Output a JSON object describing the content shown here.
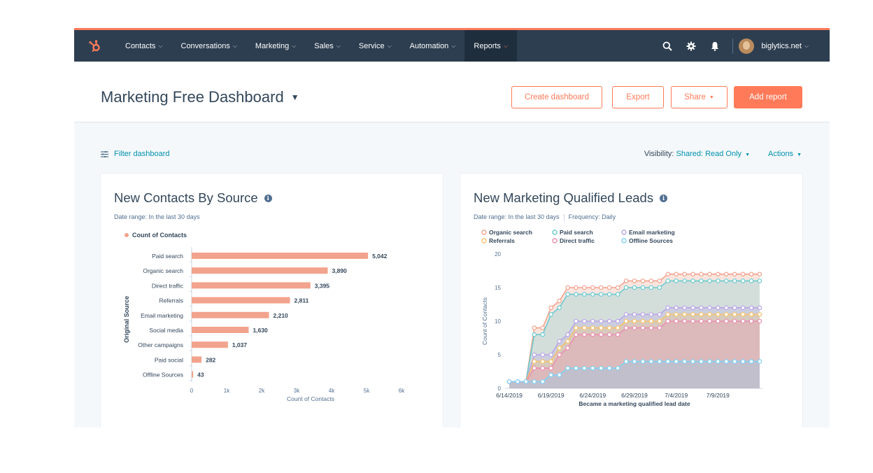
{
  "nav": {
    "logo": "hubspot-sprocket",
    "items": [
      {
        "label": "Contacts"
      },
      {
        "label": "Conversations"
      },
      {
        "label": "Marketing"
      },
      {
        "label": "Sales"
      },
      {
        "label": "Service"
      },
      {
        "label": "Automation"
      },
      {
        "label": "Reports"
      }
    ],
    "account": "biglytics.net"
  },
  "header": {
    "title": "Marketing Free Dashboard",
    "buttons": {
      "create": "Create dashboard",
      "export": "Export",
      "share": "Share",
      "add": "Add report"
    }
  },
  "toolbar": {
    "filter": "Filter dashboard",
    "visibility_label": "Visibility:",
    "visibility_value": "Shared: Read Only",
    "actions": "Actions"
  },
  "colors": {
    "accent": "#ff7a59",
    "nav_bg": "#2d3e50",
    "link": "#0091ae",
    "bar": "#f2a38d"
  },
  "card1": {
    "title": "New Contacts By Source",
    "date_range": "Date range: In the last 30 days",
    "chart_data": {
      "type": "bar",
      "orientation": "horizontal",
      "legend": [
        "Count of Contacts"
      ],
      "ylabel": "Original Source",
      "xlabel": "Count of Contacts",
      "categories": [
        "Paid search",
        "Organic search",
        "Direct traffic",
        "Referrals",
        "Email marketing",
        "Social media",
        "Other campaigns",
        "Paid social",
        "Offline Sources"
      ],
      "values": [
        5042,
        3890,
        3395,
        2811,
        2210,
        1630,
        1037,
        282,
        43
      ],
      "value_labels": [
        "5,042",
        "3,890",
        "3,395",
        "2,811",
        "2,210",
        "1,630",
        "1,037",
        "282",
        "43"
      ],
      "xlim": [
        0,
        6000
      ],
      "xticks": [
        "0",
        "1k",
        "2k",
        "3k",
        "4k",
        "5k",
        "6k"
      ]
    }
  },
  "card2": {
    "title": "New Marketing Qualified Leads",
    "date_range": "Date range: In the last 30 days",
    "frequency": "Frequency: Daily",
    "chart_data": {
      "type": "area",
      "xlabel": "Became a marketing qualified lead date",
      "ylabel": "Count of Contacts",
      "ylim": [
        0,
        20
      ],
      "yticks": [
        "0",
        "5",
        "10",
        "15",
        "20"
      ],
      "xticks": [
        "6/14/2019",
        "6/19/2019",
        "6/24/2019",
        "6/29/2019",
        "7/4/2019",
        "7/9/2019"
      ],
      "x": [
        "6/14/2019",
        "6/15/2019",
        "6/16/2019",
        "6/17/2019",
        "6/18/2019",
        "6/19/2019",
        "6/20/2019",
        "6/21/2019",
        "6/22/2019",
        "6/23/2019",
        "6/24/2019",
        "6/25/2019",
        "6/26/2019",
        "6/27/2019",
        "6/28/2019",
        "6/29/2019",
        "6/30/2019",
        "7/1/2019",
        "7/2/2019",
        "7/3/2019",
        "7/4/2019",
        "7/5/2019",
        "7/6/2019",
        "7/7/2019",
        "7/8/2019",
        "7/9/2019",
        "7/10/2019",
        "7/11/2019",
        "7/12/2019",
        "7/13/2019",
        "7/14/2019"
      ],
      "series": [
        {
          "name": "Organic search",
          "color": "#f2a38d",
          "values": [
            1,
            1,
            1,
            9,
            9,
            12,
            13,
            15,
            15,
            15,
            15,
            15,
            15,
            15,
            16,
            16,
            16,
            16,
            16,
            17,
            17,
            17,
            17,
            17,
            17,
            17,
            17,
            17,
            17,
            17,
            17
          ]
        },
        {
          "name": "Paid search",
          "color": "#6bcbcf",
          "values": [
            1,
            1,
            1,
            8,
            8,
            11,
            12,
            14,
            14,
            14,
            14,
            14,
            14,
            14,
            15,
            15,
            15,
            15,
            15,
            16,
            16,
            16,
            16,
            16,
            16,
            16,
            16,
            16,
            16,
            16,
            16
          ]
        },
        {
          "name": "Email marketing",
          "color": "#b9a5e6",
          "values": [
            1,
            1,
            1,
            5,
            5,
            5,
            7,
            8,
            10,
            10,
            10,
            10,
            10,
            10,
            11,
            11,
            11,
            11,
            11,
            12,
            12,
            12,
            12,
            12,
            12,
            12,
            12,
            12,
            12,
            12,
            12
          ]
        },
        {
          "name": "Referrals",
          "color": "#f5c26b",
          "values": [
            1,
            1,
            1,
            4,
            4,
            4,
            6,
            7,
            9,
            9,
            9,
            9,
            9,
            9,
            10,
            10,
            10,
            10,
            10,
            11,
            11,
            11,
            11,
            11,
            11,
            11,
            11,
            11,
            11,
            11,
            11
          ]
        },
        {
          "name": "Direct traffic",
          "color": "#ea90b1",
          "values": [
            1,
            1,
            1,
            3,
            3,
            3,
            5,
            6,
            8,
            8,
            8,
            8,
            8,
            8,
            9,
            9,
            9,
            9,
            9,
            10,
            10,
            10,
            10,
            10,
            10,
            10,
            10,
            10,
            10,
            10,
            10
          ]
        },
        {
          "name": "Offline Sources",
          "color": "#7fd1f7",
          "values": [
            1,
            1,
            1,
            1,
            1,
            2,
            2,
            3,
            3,
            3,
            3,
            3,
            3,
            3,
            4,
            4,
            4,
            4,
            4,
            4,
            4,
            4,
            4,
            4,
            4,
            4,
            4,
            4,
            4,
            4,
            4
          ]
        }
      ]
    }
  }
}
